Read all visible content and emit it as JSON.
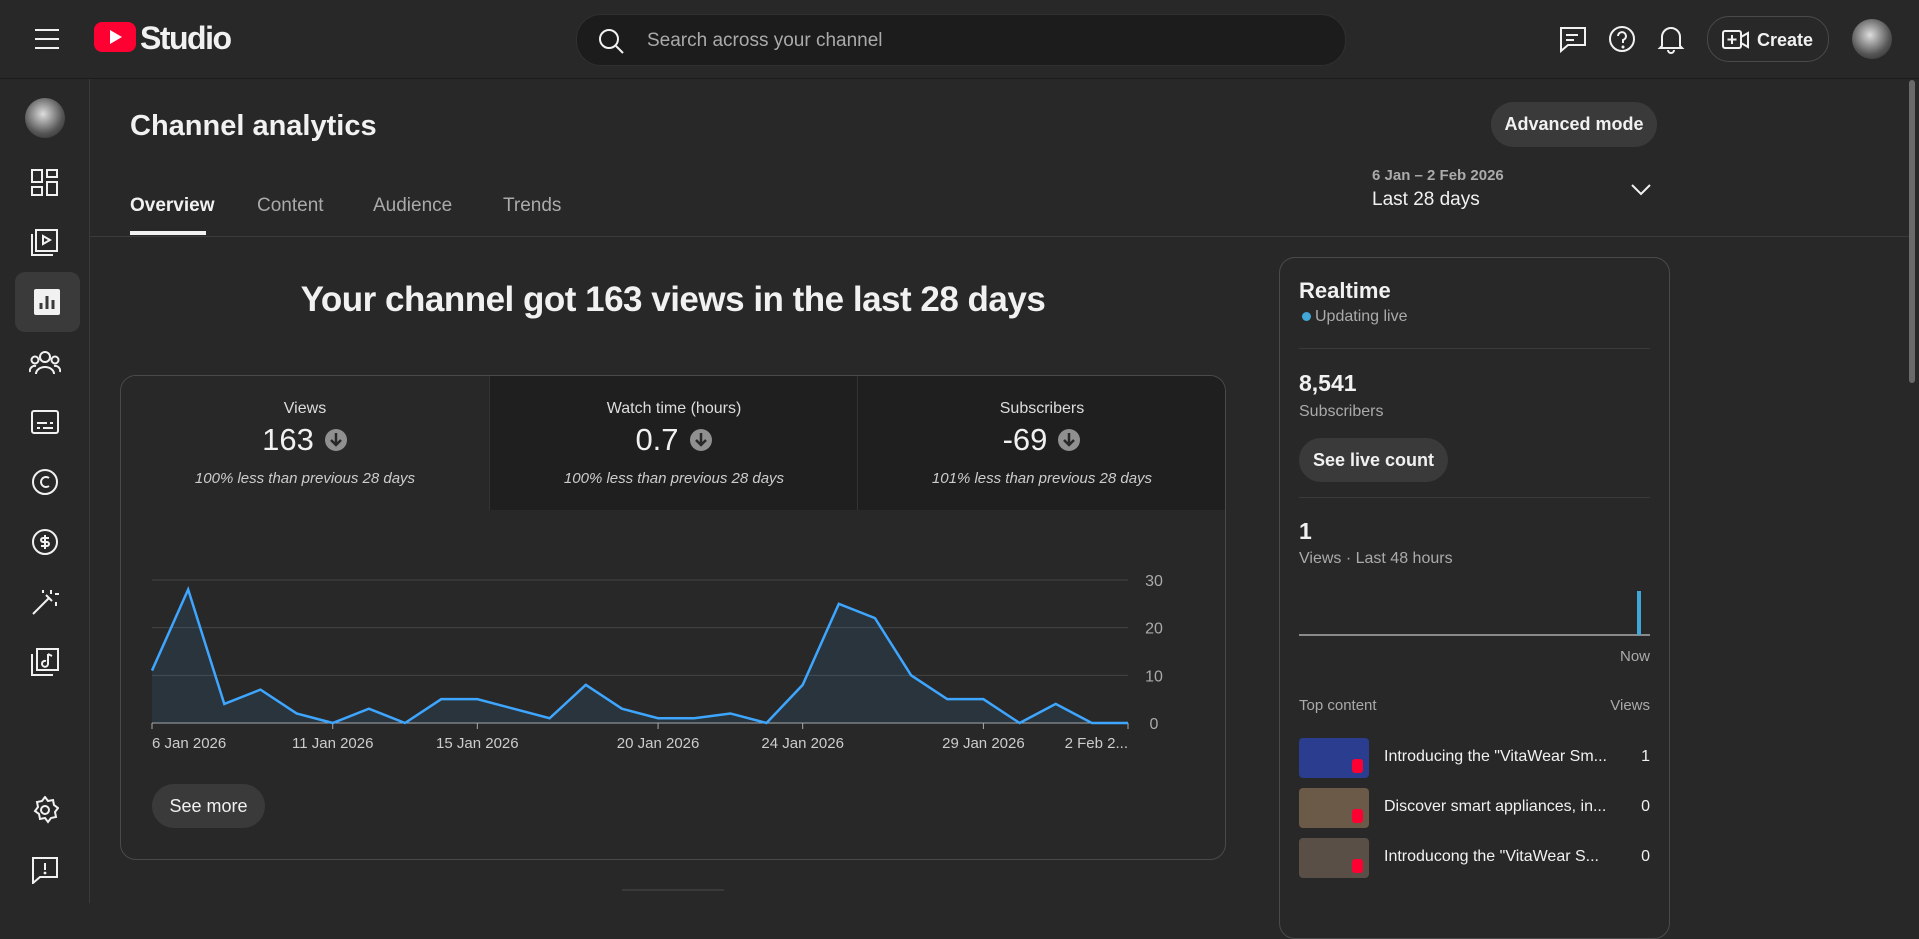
{
  "header": {
    "brand": "Studio",
    "search_placeholder": "Search across your channel",
    "create": "Create"
  },
  "page": {
    "title": "Channel analytics",
    "advanced_mode": "Advanced mode",
    "tabs": [
      "Overview",
      "Content",
      "Audience",
      "Trends"
    ],
    "date_range": "6 Jan – 2 Feb 2026",
    "period": "Last 28 days"
  },
  "summary": {
    "headline": "Your channel got 163 views in the last 28 days"
  },
  "metrics": [
    {
      "label": "Views",
      "value": 163,
      "change": "100% less than previous 28 days"
    },
    {
      "label": "Watch time (hours)",
      "value": 0.7,
      "change": "100% less than previous 28 days"
    },
    {
      "label": "Subscribers",
      "value": -69,
      "change": "101% less than previous 28 days"
    }
  ],
  "chart_data": {
    "type": "line",
    "categories": [
      "6 Jan 2026",
      null,
      null,
      null,
      null,
      "11 Jan 2026",
      null,
      null,
      null,
      "15 Jan 2026",
      null,
      null,
      null,
      null,
      "20 Jan 2026",
      null,
      null,
      null,
      "24 Jan 2026",
      null,
      null,
      null,
      null,
      "29 Jan 2026",
      null,
      null,
      null,
      "2 Feb 2..."
    ],
    "values": [
      11,
      28,
      4,
      7,
      2,
      0,
      3,
      0,
      5,
      5,
      3,
      1,
      8,
      3,
      1,
      1,
      2,
      0,
      8,
      25,
      22,
      10,
      5,
      5,
      0,
      4,
      0,
      0
    ],
    "color": "#3ea6ff",
    "ylim": [
      0,
      30
    ],
    "yticks": [
      0,
      10,
      20,
      30
    ],
    "grid": true
  },
  "see_more": "See more",
  "realtime": {
    "title": "Realtime",
    "status": "Updating live",
    "subscribers": "8,541",
    "subscribers_label": "Subscribers",
    "see_live": "See live count",
    "views": 1,
    "views_label": "Views · Last 48 hours",
    "now": "Now",
    "top_content": "Top content",
    "views_header": "Views",
    "items": [
      {
        "title": "Introducing the \"VitaWear Sm...",
        "views": 1
      },
      {
        "title": "Discover smart appliances, in...",
        "views": 0
      },
      {
        "title": "Introducong the \"VitaWear S...",
        "views": 0
      }
    ]
  }
}
